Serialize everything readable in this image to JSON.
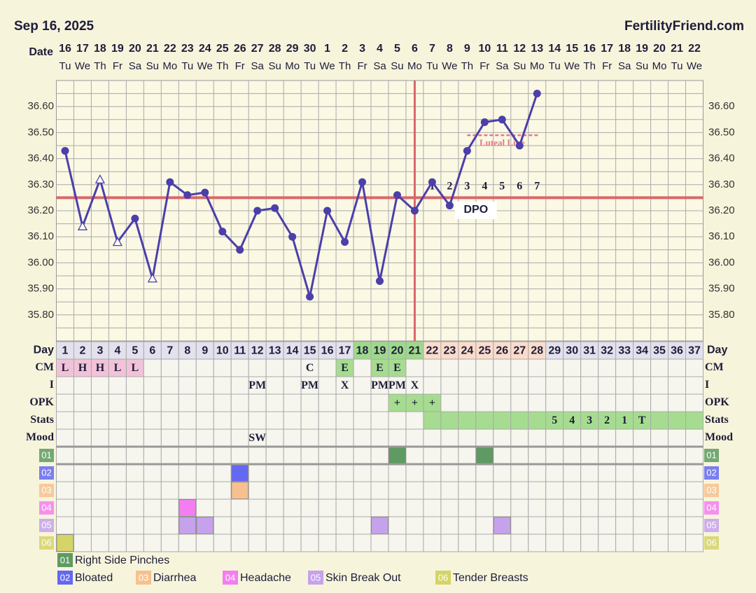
{
  "header": {
    "date": "Sep 16, 2025",
    "site": "FertilityFriend.com"
  },
  "chart_data": {
    "type": "line",
    "x_label": "Date",
    "dates": [
      16,
      17,
      18,
      19,
      20,
      21,
      22,
      23,
      24,
      25,
      26,
      27,
      28,
      29,
      30,
      1,
      2,
      3,
      4,
      5,
      6,
      7,
      8,
      9,
      10,
      11,
      12,
      13,
      14,
      15,
      16,
      17,
      18,
      19,
      20,
      21,
      22
    ],
    "weekdays": [
      "Tu",
      "We",
      "Th",
      "Fr",
      "Sa",
      "Su",
      "Mo",
      "Tu",
      "We",
      "Th",
      "Fr",
      "Sa",
      "Su",
      "Mo",
      "Tu",
      "We",
      "Th",
      "Fr",
      "Sa",
      "Su",
      "Mo",
      "Tu",
      "We",
      "Th",
      "Fr",
      "Sa",
      "Su",
      "Mo",
      "Tu",
      "We",
      "Th",
      "Fr",
      "Sa",
      "Su",
      "Mo",
      "Tu",
      "We"
    ],
    "ylim": [
      35.7,
      36.7
    ],
    "yticks": [
      {
        "value": 35.8,
        "label": "35.80"
      },
      {
        "value": 35.9,
        "label": "35.90"
      },
      {
        "value": 36.0,
        "label": "36.00"
      },
      {
        "value": 36.1,
        "label": "36.10"
      },
      {
        "value": 36.2,
        "label": "36.20"
      },
      {
        "value": 36.3,
        "label": "36.30"
      },
      {
        "value": 36.4,
        "label": "36.40"
      },
      {
        "value": 36.5,
        "label": "36.50"
      },
      {
        "value": 36.6,
        "label": "36.60"
      }
    ],
    "yminor": [
      35.75,
      35.85,
      35.95,
      36.05,
      36.15,
      36.25,
      36.35,
      36.45,
      36.55,
      36.65
    ],
    "color": "#4b3faa",
    "values": [
      36.43,
      36.14,
      36.32,
      36.08,
      36.17,
      35.94,
      36.31,
      36.26,
      36.27,
      36.12,
      36.05,
      36.2,
      36.21,
      36.1,
      35.87,
      36.2,
      36.08,
      36.31,
      35.93,
      36.26,
      36.2,
      36.31,
      36.22,
      36.43,
      36.54,
      36.55,
      36.45,
      36.65,
      null,
      null,
      null,
      null,
      null,
      null,
      null,
      null,
      null
    ],
    "open_markers": [
      false,
      true,
      true,
      true,
      false,
      true,
      false,
      false,
      false,
      false,
      false,
      false,
      false,
      false,
      false,
      false,
      false,
      false,
      false,
      false,
      false,
      false,
      false,
      false,
      false,
      false,
      false,
      false,
      false,
      false,
      false,
      false,
      false,
      false,
      false,
      false,
      false
    ],
    "coverline": 36.25,
    "coverline_color": "#d9676a",
    "ovulation_day": 21,
    "luteal_line": {
      "label": "Luteal Line",
      "value": 36.49,
      "start": 24,
      "end": 28,
      "color": "#e57a80"
    },
    "dpo_label": "DPO",
    "dpo": [
      1,
      2,
      3,
      4,
      5,
      6,
      7
    ],
    "day_label": "Day",
    "cycle_days": [
      1,
      2,
      3,
      4,
      5,
      6,
      7,
      8,
      9,
      10,
      11,
      12,
      13,
      14,
      15,
      16,
      17,
      18,
      19,
      20,
      21,
      22,
      23,
      24,
      25,
      26,
      27,
      28,
      29,
      30,
      31,
      32,
      33,
      34,
      35,
      36,
      37
    ],
    "day_fill": "#e3e1ed",
    "fertile_range": [
      18,
      21
    ],
    "fertile_fill": "#9fd98c",
    "luteal_range": [
      22,
      28
    ],
    "luteal_fill": "#fbdccb",
    "rows": [
      {
        "label": "CM",
        "values": [
          "L",
          "H",
          "H",
          "L",
          "L",
          null,
          null,
          null,
          null,
          null,
          null,
          null,
          null,
          null,
          "C",
          null,
          "E",
          null,
          "E",
          "E",
          null,
          null,
          null,
          null,
          null,
          null,
          null,
          null,
          null,
          null,
          null,
          null,
          null,
          null,
          null,
          null,
          null
        ],
        "fills": [
          "#f2c3d8",
          "#f2c3d8",
          "#f2c3d8",
          "#f2c3d8",
          "#f2c3d8",
          null,
          null,
          null,
          null,
          null,
          null,
          null,
          null,
          null,
          null,
          null,
          "#a6dc8f",
          null,
          "#a6dc8f",
          "#a6dc8f",
          null,
          null,
          null,
          null,
          null,
          null,
          null,
          null,
          null,
          null,
          null,
          null,
          null,
          null,
          null,
          null,
          null
        ]
      },
      {
        "label": "I",
        "values": [
          null,
          null,
          null,
          null,
          null,
          null,
          null,
          null,
          null,
          null,
          null,
          "PM",
          null,
          null,
          "PM",
          null,
          "X",
          null,
          "PM",
          "PM",
          "X",
          null,
          null,
          null,
          null,
          null,
          null,
          null,
          null,
          null,
          null,
          null,
          null,
          null,
          null,
          null,
          null
        ],
        "fills": [
          null,
          null,
          null,
          null,
          null,
          null,
          null,
          null,
          null,
          null,
          null,
          null,
          null,
          null,
          null,
          null,
          null,
          null,
          null,
          null,
          null,
          null,
          null,
          null,
          null,
          null,
          null,
          null,
          null,
          null,
          null,
          null,
          null,
          null,
          null,
          null,
          null
        ]
      },
      {
        "label": "OPK",
        "values": [
          null,
          null,
          null,
          null,
          null,
          null,
          null,
          null,
          null,
          null,
          null,
          null,
          null,
          null,
          null,
          null,
          null,
          null,
          null,
          "+",
          "+",
          "+",
          null,
          null,
          null,
          null,
          null,
          null,
          null,
          null,
          null,
          null,
          null,
          null,
          null,
          null,
          null
        ],
        "fills": [
          null,
          null,
          null,
          null,
          null,
          null,
          null,
          null,
          null,
          null,
          null,
          null,
          null,
          null,
          null,
          null,
          null,
          null,
          null,
          "#a6dc8f",
          "#a6dc8f",
          "#a6dc8f",
          null,
          null,
          null,
          null,
          null,
          null,
          null,
          null,
          null,
          null,
          null,
          null,
          null,
          null,
          null
        ]
      },
      {
        "label": "Stats",
        "values": [
          null,
          null,
          null,
          null,
          null,
          null,
          null,
          null,
          null,
          null,
          null,
          null,
          null,
          null,
          null,
          null,
          null,
          null,
          null,
          null,
          null,
          null,
          null,
          null,
          null,
          null,
          null,
          null,
          "5",
          "4",
          "3",
          "2",
          "1",
          "T",
          null,
          null,
          null
        ],
        "fills": [
          null,
          null,
          null,
          null,
          null,
          null,
          null,
          null,
          null,
          null,
          null,
          null,
          null,
          null,
          null,
          null,
          null,
          null,
          null,
          null,
          null,
          "#a6dc8f",
          "#a6dc8f",
          "#a6dc8f",
          "#a6dc8f",
          "#a6dc8f",
          "#a6dc8f",
          "#a6dc8f",
          "#a6dc8f",
          "#a6dc8f",
          "#a6dc8f",
          "#a6dc8f",
          "#a6dc8f",
          "#a6dc8f",
          "#a6dc8f",
          "#a6dc8f",
          "#a6dc8f"
        ]
      },
      {
        "label": "Mood",
        "values": [
          null,
          null,
          null,
          null,
          null,
          null,
          null,
          null,
          null,
          null,
          null,
          "SW",
          null,
          null,
          null,
          null,
          null,
          null,
          null,
          null,
          null,
          null,
          null,
          null,
          null,
          null,
          null,
          null,
          null,
          null,
          null,
          null,
          null,
          null,
          null,
          null,
          null
        ],
        "fills": [
          null,
          null,
          null,
          null,
          null,
          null,
          null,
          null,
          null,
          null,
          null,
          null,
          null,
          null,
          null,
          null,
          null,
          null,
          null,
          null,
          null,
          null,
          null,
          null,
          null,
          null,
          null,
          null,
          null,
          null,
          null,
          null,
          null,
          null,
          null,
          null,
          null
        ]
      }
    ],
    "symptoms": [
      {
        "code": "01",
        "name": "Right Side Pinches",
        "color": "#5e9a62",
        "days": [
          20,
          25
        ]
      },
      {
        "code": "02",
        "name": "Bloated",
        "color": "#6468f2",
        "days": [
          11
        ]
      },
      {
        "code": "03",
        "name": "Diarrhea",
        "color": "#f7c18f",
        "days": [
          11
        ]
      },
      {
        "code": "04",
        "name": "Headache",
        "color": "#f47ef0",
        "days": [
          8
        ]
      },
      {
        "code": "05",
        "name": "Skin Break Out",
        "color": "#c6a2ec",
        "days": [
          8,
          9,
          19,
          26
        ]
      },
      {
        "code": "06",
        "name": "Tender Breasts",
        "color": "#d4d468",
        "days": [
          1
        ]
      }
    ]
  }
}
